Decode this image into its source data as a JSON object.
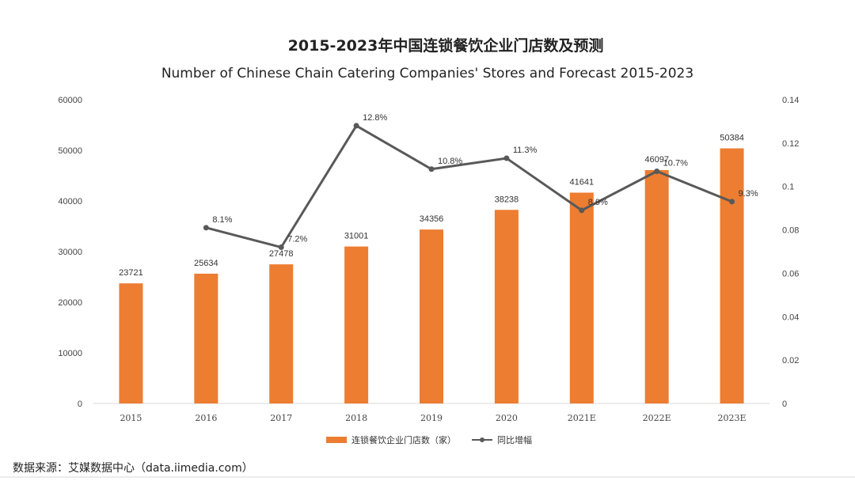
{
  "chart_data": {
    "type": "bar",
    "title": "2015-2023年中国连锁餐饮企业门店数及预测",
    "subtitle": "Number of Chinese Chain Catering Companies' Stores and Forecast 2015-2023",
    "categories": [
      "2015",
      "2016",
      "2017",
      "2018",
      "2019",
      "2020",
      "2021E",
      "2022E",
      "2023E"
    ],
    "series": [
      {
        "name": "连锁餐饮企业门店数（家）",
        "type": "bar",
        "axis": "left",
        "color": "#ed7d31",
        "values": [
          23721,
          25634,
          27478,
          31001,
          34356,
          38238,
          41641,
          46097,
          50384
        ],
        "labels": [
          "23721",
          "25634",
          "27478",
          "31001",
          "34356",
          "38238",
          "41641",
          "46097",
          "50384"
        ]
      },
      {
        "name": "同比增幅",
        "type": "line",
        "axis": "right",
        "color": "#595959",
        "values": [
          null,
          0.081,
          0.072,
          0.128,
          0.108,
          0.113,
          0.089,
          0.107,
          0.093
        ],
        "labels": [
          "",
          "8.1%",
          "7.2%",
          "12.8%",
          "10.8%",
          "11.3%",
          "8.9%",
          "10.7%",
          "9.3%"
        ]
      }
    ],
    "y_left": {
      "min": 0,
      "max": 60000,
      "ticks": [
        0,
        10000,
        20000,
        30000,
        40000,
        50000,
        60000
      ],
      "tick_labels": [
        "0",
        "10000",
        "20000",
        "30000",
        "40000",
        "50000",
        "60000"
      ]
    },
    "y_right": {
      "min": 0,
      "max": 0.14,
      "ticks": [
        0,
        0.02,
        0.04,
        0.06,
        0.08,
        0.1,
        0.12,
        0.14
      ],
      "tick_labels": [
        "0",
        "0.02",
        "0.04",
        "0.06",
        "0.08",
        "0.1",
        "0.12",
        "0.14"
      ]
    },
    "grid": false,
    "legend_position": "bottom-center"
  },
  "source": "数据来源：艾媒数据中心（data.iimedia.com）"
}
